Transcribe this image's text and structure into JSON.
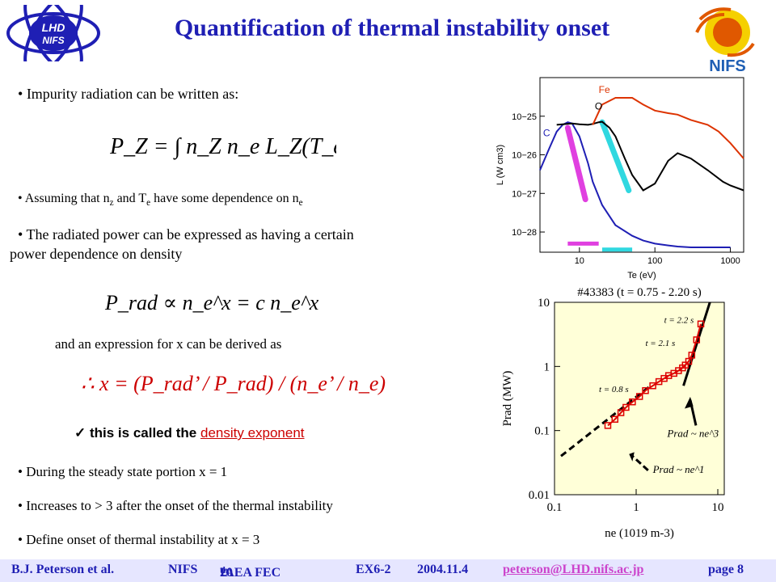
{
  "slide": {
    "title": "Quantification of thermal instability onset",
    "bullets": {
      "b1": "Impurity radiation can be written as:",
      "b2_pre": "Assuming that n",
      "b2_z": "z",
      "b2_mid1": " and T",
      "b2_e": "e",
      "b2_mid2": " have some dependence on n",
      "b2_e2": "e",
      "b3_line1": "The radiated power can be expressed as having a certain",
      "b3_line2": "power dependence on density",
      "b4_derive": "and an expression for x can be derived as",
      "b5_called": "this is called the",
      "b5_term": "density exponent",
      "b6": "During the steady state portion x = 1",
      "b7": "Increases to > 3 after the onset of the thermal instability",
      "b8": "Define onset of thermal instability at x = 3"
    },
    "equations": {
      "pz": "P_Z = ∫ n_Z n_e L_Z(T_e) dV",
      "prad_prop": "P_rad ∝ n_e^x = c n_e^x",
      "x_expr": "∴ x = (P_rad’ / P_rad) / (n_e’ / n_e)"
    }
  },
  "logos": {
    "lhd": "LHD NIFS",
    "nifs": "NIFS"
  },
  "footer": {
    "author": "B.J. Peterson et al.",
    "org": "NIFS",
    "conf_num": "20",
    "conf_sup": "th",
    "conf_rest": "IAEA FEC",
    "paper": "EX6-2",
    "date": "2004.11.4",
    "email": "peterson@LHD.nifs.ac.jp",
    "page": "page 8"
  },
  "chart_data": [
    {
      "type": "line",
      "xlabel": "Te (eV)",
      "ylabel": "L (W cm3)",
      "x_scale": "log",
      "y_scale": "log",
      "xlim": [
        3,
        1500
      ],
      "ylim": [
        3e-29,
        1e-24
      ],
      "x_ticks": [
        "10",
        "100",
        "1000"
      ],
      "y_ticks": [
        "10−25",
        "10−26",
        "10−27",
        "10−28"
      ],
      "series": [
        {
          "name": "C",
          "color": "#1f1fb4",
          "x": [
            3,
            4,
            5,
            6,
            7,
            8,
            10,
            13,
            15,
            20,
            30,
            50,
            70,
            100,
            150,
            200,
            300,
            500,
            800,
            1000
          ],
          "y": [
            4e-27,
            1.5e-26,
            4e-26,
            6e-26,
            7e-26,
            6.5e-26,
            3e-26,
            6e-27,
            2e-27,
            5e-28,
            1.5e-28,
            8e-29,
            6e-29,
            5e-29,
            4.5e-29,
            4.2e-29,
            4e-29,
            4e-29,
            4e-29,
            4e-29
          ]
        },
        {
          "name": "O",
          "color": "#000000",
          "x": [
            5,
            8,
            10,
            13,
            15,
            18,
            20,
            25,
            30,
            40,
            50,
            70,
            100,
            150,
            200,
            300,
            500,
            800,
            1000,
            1500
          ],
          "y": [
            6e-26,
            6.5e-26,
            6.2e-26,
            6e-26,
            6.3e-26,
            7e-26,
            7.2e-26,
            5e-26,
            3e-26,
            8e-27,
            3e-27,
            1.2e-27,
            1.8e-27,
            7e-27,
            1.1e-26,
            8e-27,
            4e-27,
            2e-27,
            1.6e-27,
            1.2e-27
          ]
        },
        {
          "name": "Fe",
          "color": "#dd3300",
          "x": [
            15,
            20,
            30,
            50,
            70,
            100,
            150,
            200,
            300,
            500,
            700,
            1000,
            1500
          ],
          "y": [
            6e-26,
            2e-25,
            3e-25,
            3e-25,
            2e-25,
            1.4e-25,
            1.2e-25,
            1.1e-25,
            8e-26,
            6e-26,
            4e-26,
            2e-26,
            8e-27
          ]
        }
      ],
      "annotations": [
        "C",
        "O",
        "Fe"
      ]
    },
    {
      "type": "scatter",
      "title": "#43383 (t = 0.75 - 2.20 s)",
      "xlabel": "ne (1019 m-3)",
      "ylabel": "Prad (MW)",
      "x_scale": "log",
      "y_scale": "log",
      "xlim": [
        0.1,
        12
      ],
      "ylim": [
        0.01,
        10
      ],
      "x_ticks": [
        "0.1",
        "1",
        "10"
      ],
      "y_ticks": [
        "0.01",
        "0.1",
        "1",
        "10"
      ],
      "series": [
        {
          "name": "data",
          "color": "#dd0000",
          "x": [
            0.45,
            0.55,
            0.65,
            0.75,
            0.9,
            1.1,
            1.3,
            1.6,
            1.9,
            2.2,
            2.5,
            2.9,
            3.3,
            3.7,
            4.0,
            4.4,
            4.8,
            5.5,
            6.2
          ],
          "y": [
            0.12,
            0.15,
            0.19,
            0.23,
            0.28,
            0.34,
            0.42,
            0.5,
            0.58,
            0.65,
            0.72,
            0.78,
            0.86,
            0.95,
            1.05,
            1.2,
            1.5,
            2.6,
            4.6
          ]
        },
        {
          "name": "Prad ~ ne^1",
          "color": "#000000",
          "x": [
            0.12,
            1.5
          ],
          "y": [
            0.04,
            0.5
          ]
        },
        {
          "name": "Prad ~ ne^3",
          "color": "#000000",
          "x": [
            3.8,
            8.0
          ],
          "y": [
            0.5,
            12
          ]
        }
      ],
      "annotations": [
        "t = 2.2 s",
        "t = 2.1 s",
        "t = 0.8 s"
      ]
    }
  ]
}
